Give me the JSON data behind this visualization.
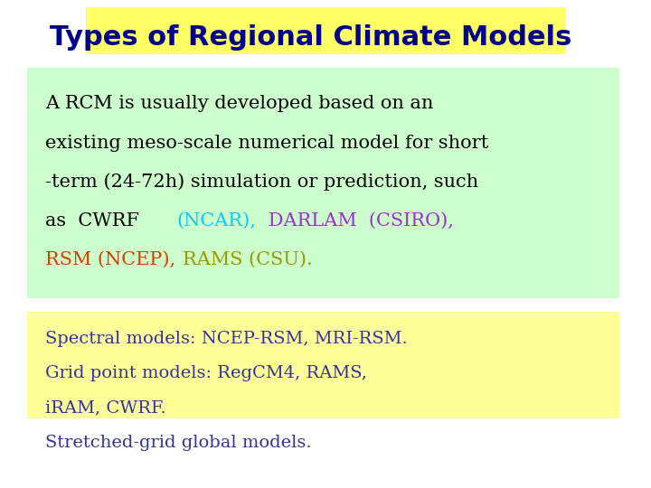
{
  "title": "Types of Regional Climate Models",
  "title_color": "#00008B",
  "title_bg": "#FFFF66",
  "title_fontsize": 22,
  "bg_color": "#FFFFFF",
  "box1_color": "#CCFFCC",
  "box2_color": "#FFFF99",
  "box1_ncar_color": "#00CCFF",
  "box1_darlam_color": "#9933CC",
  "box1_rsm_color": "#CC4400",
  "box1_rams_color": "#999900",
  "box2_line1": "Spectral models: NCEP-RSM, MRI-RSM.",
  "box2_line2": "Grid point models: RegCM4, RAMS,",
  "box2_line3": "iRAM, CWRF.",
  "box2_line4": "Stretched-grid global models.",
  "box2_text_color": "#333399",
  "body_fontsize": 15,
  "body_fontsize2": 14
}
